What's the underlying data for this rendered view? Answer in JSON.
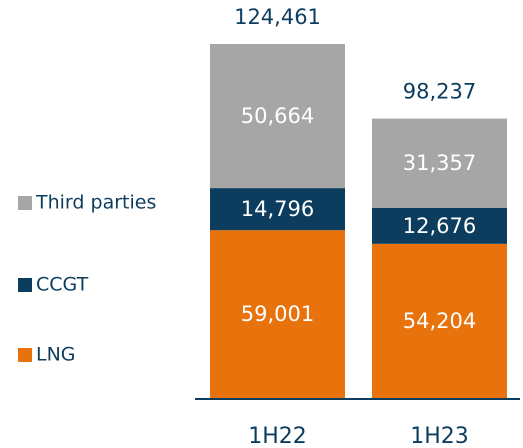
{
  "chart_data": {
    "type": "stacked_bar",
    "categories": [
      "1H22",
      "1H23"
    ],
    "series": [
      {
        "name": "LNG",
        "color": "#e8720c",
        "values": [
          59001,
          54204
        ],
        "value_labels": [
          "59,001",
          "54,204"
        ]
      },
      {
        "name": "CCGT",
        "color": "#0d3d5e",
        "values": [
          14796,
          12676
        ],
        "value_labels": [
          "14,796",
          "12,676"
        ]
      },
      {
        "name": "Third parties",
        "color": "#a6a6a6",
        "values": [
          50664,
          31357
        ],
        "value_labels": [
          "50,664",
          "31,357"
        ]
      }
    ],
    "totals": [
      124461,
      98237
    ],
    "total_labels": [
      "124,461",
      "98,237"
    ]
  }
}
